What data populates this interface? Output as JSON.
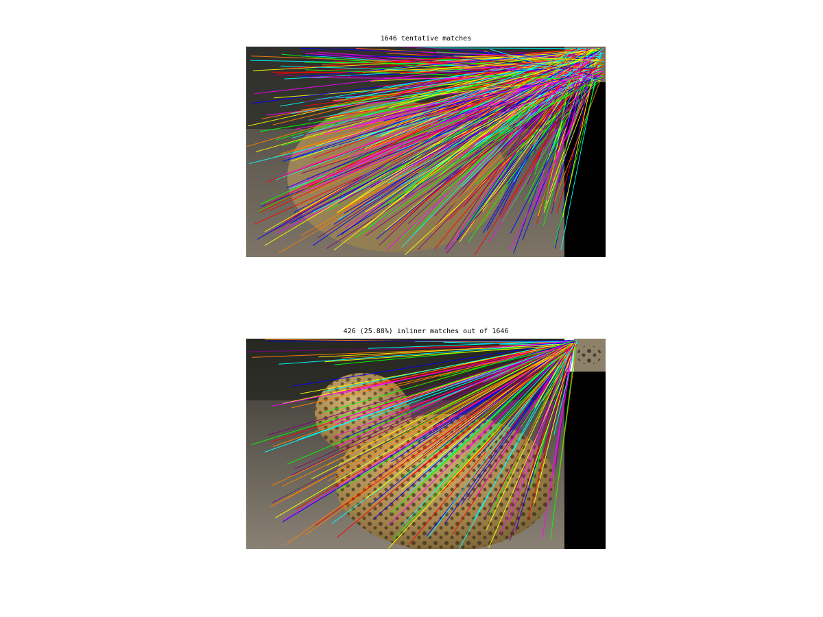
{
  "figure": {
    "top_panel": {
      "title": "1646 tentative matches"
    },
    "bottom_panel": {
      "title": "426 (25.88%) inliner matches out of 1646"
    }
  },
  "colors": {
    "match_lines": [
      "#ff0000",
      "#0000ff",
      "#ffff00",
      "#ff00ff",
      "#00ffff",
      "#00ff00",
      "#800080",
      "#ff8000"
    ],
    "background": "#ffffff",
    "matte": "#000000"
  }
}
